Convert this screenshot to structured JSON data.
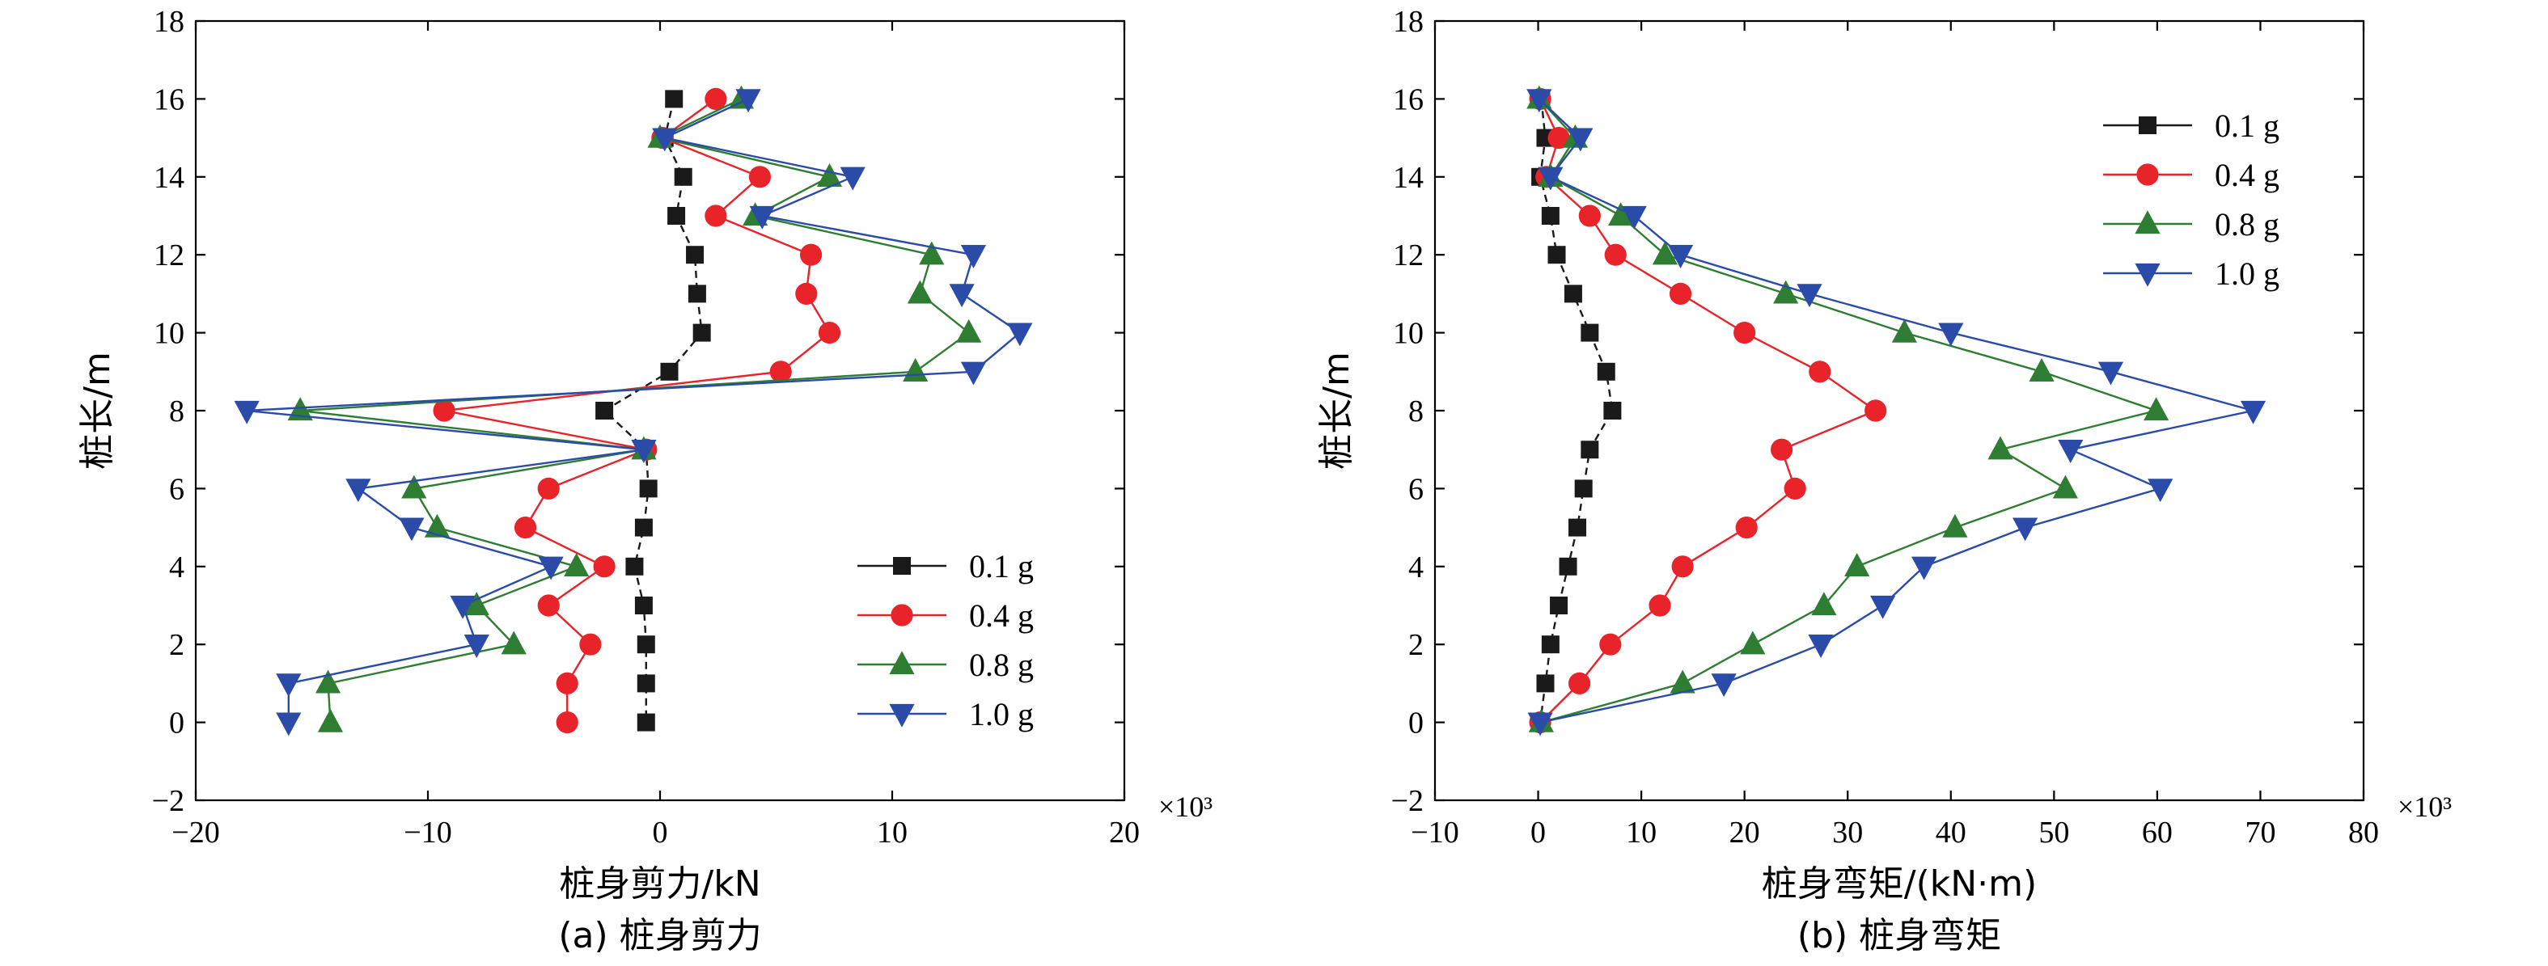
{
  "colors": {
    "series": [
      "#1a1a1a",
      "#e8232a",
      "#2e7d32",
      "#2a4ba8"
    ]
  },
  "chart_data": [
    {
      "type": "line",
      "xlabel": "桩身剪力/kN",
      "ylabel": "桩长/m",
      "caption": "(a) 桩身剪力",
      "x_multiplier": "×10³",
      "xlim": [
        -20,
        20
      ],
      "ylim": [
        -2,
        18
      ],
      "xticks": [
        -20,
        -10,
        0,
        10,
        20
      ],
      "yticks": [
        -2,
        0,
        2,
        4,
        6,
        8,
        10,
        12,
        14,
        16,
        18
      ],
      "legend_position": "right-lower",
      "series": [
        {
          "name": "0.1 g",
          "marker": "square",
          "color": "#1a1a1a",
          "points": [
            [
              0.6,
              16
            ],
            [
              0.2,
              15
            ],
            [
              1.0,
              14
            ],
            [
              0.7,
              13
            ],
            [
              1.5,
              12
            ],
            [
              1.6,
              11
            ],
            [
              1.8,
              10
            ],
            [
              0.4,
              9
            ],
            [
              -2.4,
              8
            ],
            [
              -0.6,
              7
            ],
            [
              -0.5,
              6
            ],
            [
              -0.7,
              5
            ],
            [
              -1.1,
              4
            ],
            [
              -0.7,
              3
            ],
            [
              -0.6,
              2
            ],
            [
              -0.6,
              1
            ],
            [
              -0.6,
              0
            ]
          ]
        },
        {
          "name": "0.4 g",
          "marker": "circle",
          "color": "#e8232a",
          "points": [
            [
              2.4,
              16
            ],
            [
              0.1,
              15
            ],
            [
              4.3,
              14
            ],
            [
              2.4,
              13
            ],
            [
              6.5,
              12
            ],
            [
              6.3,
              11
            ],
            [
              7.3,
              10
            ],
            [
              5.2,
              9
            ],
            [
              -9.3,
              8
            ],
            [
              -0.6,
              7
            ],
            [
              -4.8,
              6
            ],
            [
              -5.8,
              5
            ],
            [
              -2.4,
              4
            ],
            [
              -4.8,
              3
            ],
            [
              -3.0,
              2
            ],
            [
              -4.0,
              1
            ],
            [
              -4.0,
              0
            ]
          ]
        },
        {
          "name": "0.8 g",
          "marker": "triangle-up",
          "color": "#2e7d32",
          "points": [
            [
              3.5,
              16
            ],
            [
              0.0,
              15
            ],
            [
              7.3,
              14
            ],
            [
              4.1,
              13
            ],
            [
              11.7,
              12
            ],
            [
              11.2,
              11
            ],
            [
              13.3,
              10
            ],
            [
              11.0,
              9
            ],
            [
              -15.5,
              8
            ],
            [
              -0.7,
              7
            ],
            [
              -10.6,
              6
            ],
            [
              -9.6,
              5
            ],
            [
              -3.6,
              4
            ],
            [
              -7.9,
              3
            ],
            [
              -6.3,
              2
            ],
            [
              -14.3,
              1
            ],
            [
              -14.2,
              0
            ]
          ]
        },
        {
          "name": "1.0 g",
          "marker": "triangle-down",
          "color": "#2a4ba8",
          "points": [
            [
              3.8,
              16
            ],
            [
              0.2,
              15
            ],
            [
              8.3,
              14
            ],
            [
              4.4,
              13
            ],
            [
              13.5,
              12
            ],
            [
              13.0,
              11
            ],
            [
              15.5,
              10
            ],
            [
              13.5,
              9
            ],
            [
              -17.8,
              8
            ],
            [
              -0.7,
              7
            ],
            [
              -13.0,
              6
            ],
            [
              -10.7,
              5
            ],
            [
              -4.7,
              4
            ],
            [
              -8.5,
              3
            ],
            [
              -7.9,
              2
            ],
            [
              -16.0,
              1
            ],
            [
              -16.0,
              0
            ]
          ]
        }
      ]
    },
    {
      "type": "line",
      "xlabel": "桩身弯矩/(kN·m)",
      "ylabel": "桩长/m",
      "caption": "(b) 桩身弯矩",
      "x_multiplier": "×10³",
      "xlim": [
        -10,
        80
      ],
      "ylim": [
        -2,
        18
      ],
      "xticks": [
        -10,
        0,
        10,
        20,
        30,
        40,
        50,
        60,
        70,
        80
      ],
      "yticks": [
        -2,
        0,
        2,
        4,
        6,
        8,
        10,
        12,
        14,
        16,
        18
      ],
      "legend_position": "top-right",
      "series": [
        {
          "name": "0.1 g",
          "marker": "square",
          "color": "#1a1a1a",
          "points": [
            [
              0.3,
              16
            ],
            [
              0.7,
              15
            ],
            [
              0.2,
              14
            ],
            [
              1.2,
              13
            ],
            [
              1.8,
              12
            ],
            [
              3.4,
              11
            ],
            [
              5.0,
              10
            ],
            [
              6.6,
              9
            ],
            [
              7.2,
              8
            ],
            [
              5.0,
              7
            ],
            [
              4.4,
              6
            ],
            [
              3.8,
              5
            ],
            [
              2.9,
              4
            ],
            [
              2.0,
              3
            ],
            [
              1.2,
              2
            ],
            [
              0.7,
              1
            ],
            [
              0.2,
              0
            ]
          ]
        },
        {
          "name": "0.4 g",
          "marker": "circle",
          "color": "#e8232a",
          "points": [
            [
              0.2,
              16
            ],
            [
              2.0,
              15
            ],
            [
              0.8,
              14
            ],
            [
              5.0,
              13
            ],
            [
              7.5,
              12
            ],
            [
              13.8,
              11
            ],
            [
              20.0,
              10
            ],
            [
              27.3,
              9
            ],
            [
              32.7,
              8
            ],
            [
              23.6,
              7
            ],
            [
              24.9,
              6
            ],
            [
              20.2,
              5
            ],
            [
              14.0,
              4
            ],
            [
              11.8,
              3
            ],
            [
              7.0,
              2
            ],
            [
              4.0,
              1
            ],
            [
              0.2,
              0
            ]
          ]
        },
        {
          "name": "0.8 g",
          "marker": "triangle-up",
          "color": "#2e7d32",
          "points": [
            [
              0.1,
              16
            ],
            [
              3.6,
              15
            ],
            [
              1.2,
              14
            ],
            [
              8.0,
              13
            ],
            [
              12.3,
              12
            ],
            [
              24.0,
              11
            ],
            [
              35.5,
              10
            ],
            [
              48.8,
              9
            ],
            [
              59.9,
              8
            ],
            [
              44.8,
              7
            ],
            [
              51.1,
              6
            ],
            [
              40.4,
              5
            ],
            [
              30.9,
              4
            ],
            [
              27.7,
              3
            ],
            [
              20.8,
              2
            ],
            [
              14.0,
              1
            ],
            [
              0.3,
              0
            ]
          ]
        },
        {
          "name": "1.0 g",
          "marker": "triangle-down",
          "color": "#2a4ba8",
          "points": [
            [
              0.1,
              16
            ],
            [
              4.1,
              15
            ],
            [
              1.2,
              14
            ],
            [
              9.3,
              13
            ],
            [
              13.8,
              12
            ],
            [
              26.3,
              11
            ],
            [
              40.0,
              10
            ],
            [
              55.5,
              9
            ],
            [
              69.3,
              8
            ],
            [
              51.6,
              7
            ],
            [
              60.3,
              6
            ],
            [
              47.2,
              5
            ],
            [
              37.4,
              4
            ],
            [
              33.4,
              3
            ],
            [
              27.4,
              2
            ],
            [
              18.0,
              1
            ],
            [
              0.2,
              0
            ]
          ]
        }
      ]
    }
  ]
}
